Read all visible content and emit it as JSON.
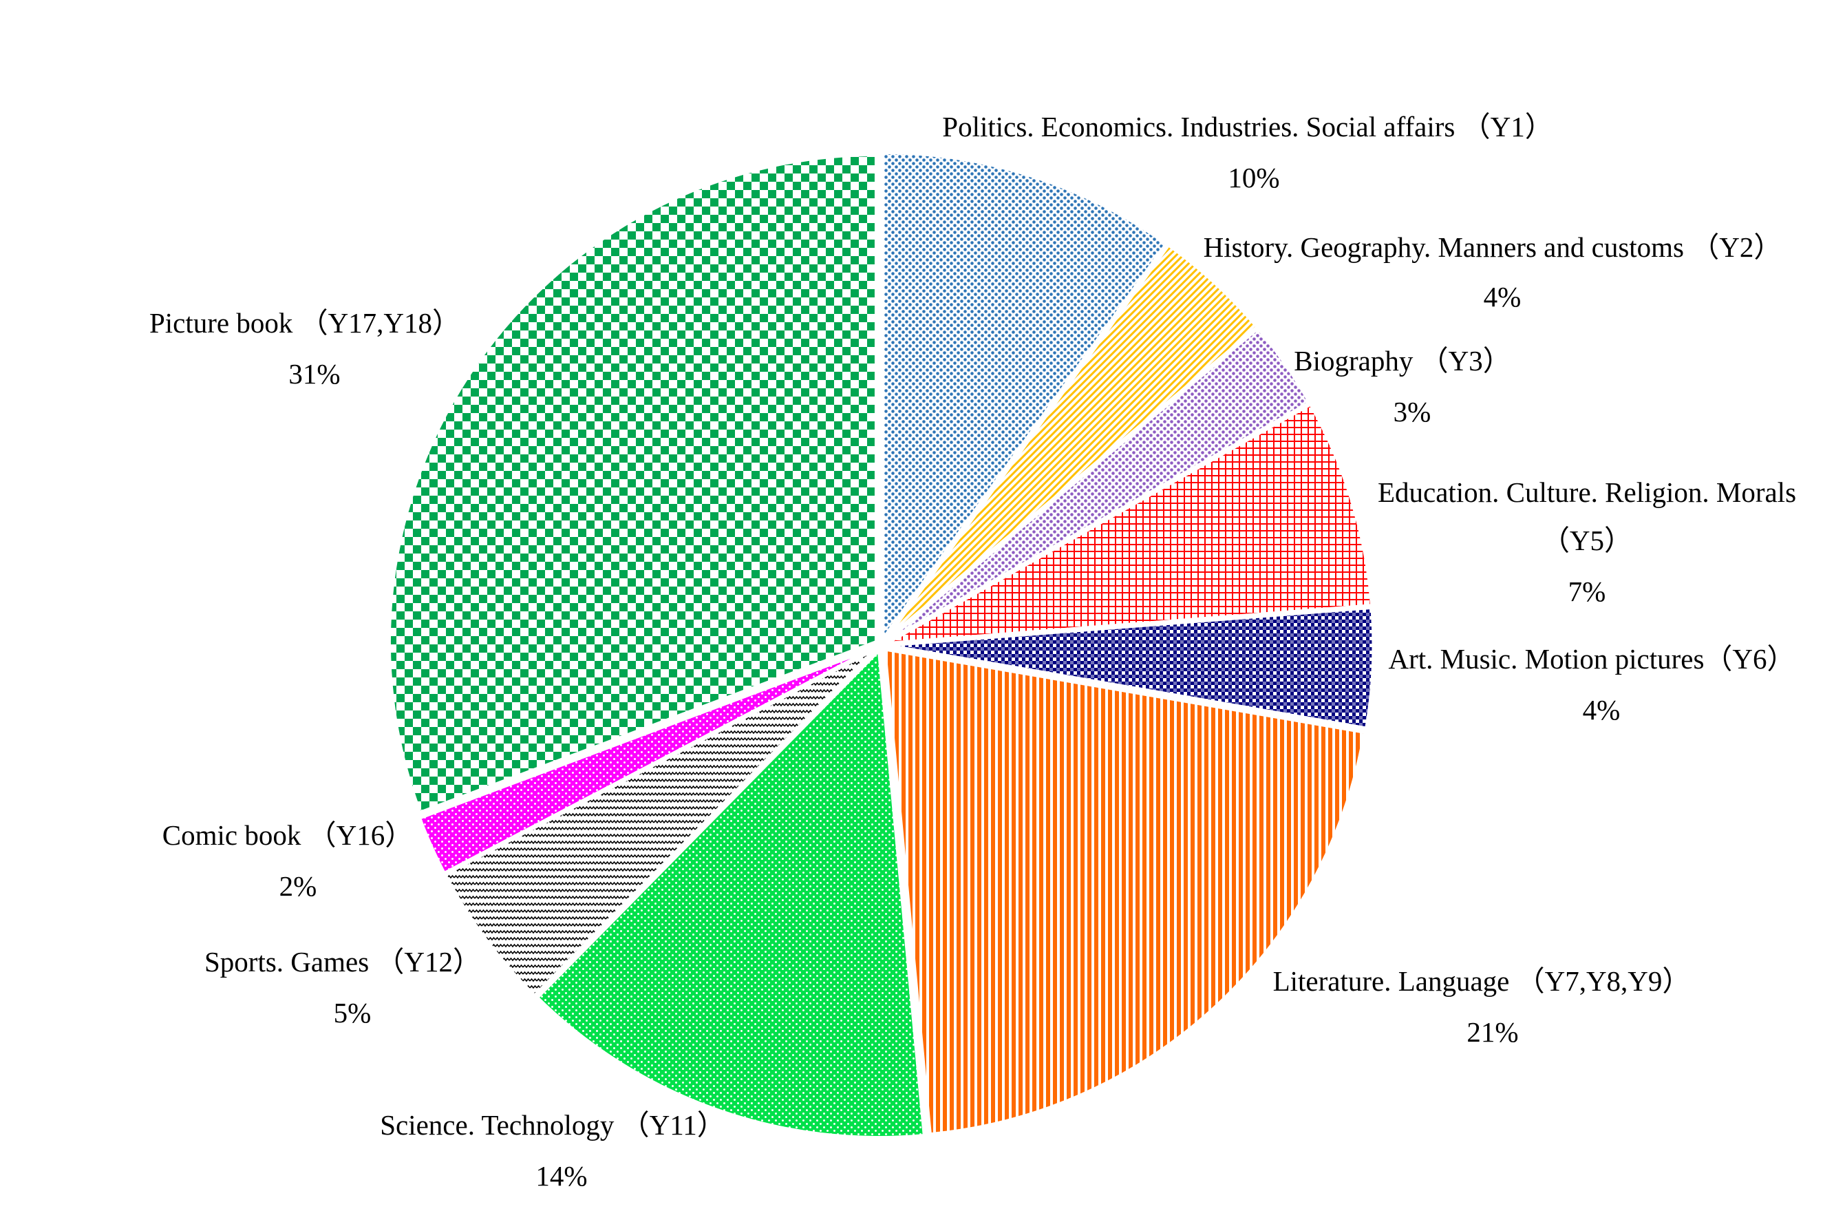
{
  "chart_data": {
    "type": "pie",
    "categories": [
      "Politics. Economics. Industries. Social affairs （Y1）",
      "History. Geography. Manners and customs （Y2）",
      "Biography （Y3）",
      "Education. Culture. Religion. Morals （Y5）",
      "Art. Music. Motion pictures（Y6）",
      "Literature. Language （Y7,Y8,Y9）",
      "Science. Technology （Y11）",
      "Sports. Games （Y12）",
      "Comic book （Y16）",
      "Picture book （Y17,Y18）"
    ],
    "values": [
      10,
      4,
      3,
      7,
      4,
      21,
      14,
      5,
      2,
      31
    ],
    "value_labels": [
      "10%",
      "4%",
      "3%",
      "7%",
      "4%",
      "21%",
      "14%",
      "5%",
      "2%",
      "31%"
    ],
    "colors": [
      "#2e75b6",
      "#ffc000",
      "#8e5cc2",
      "#ff0000",
      "#000080",
      "#ff6a00",
      "#00e04a",
      "#000000",
      "#ff00ff",
      "#00a651"
    ],
    "patterns": [
      "dots",
      "diagonal",
      "dots",
      "grid",
      "fine-checker",
      "vertical",
      "white-dots",
      "zigzag",
      "white-dots",
      "checker"
    ]
  }
}
